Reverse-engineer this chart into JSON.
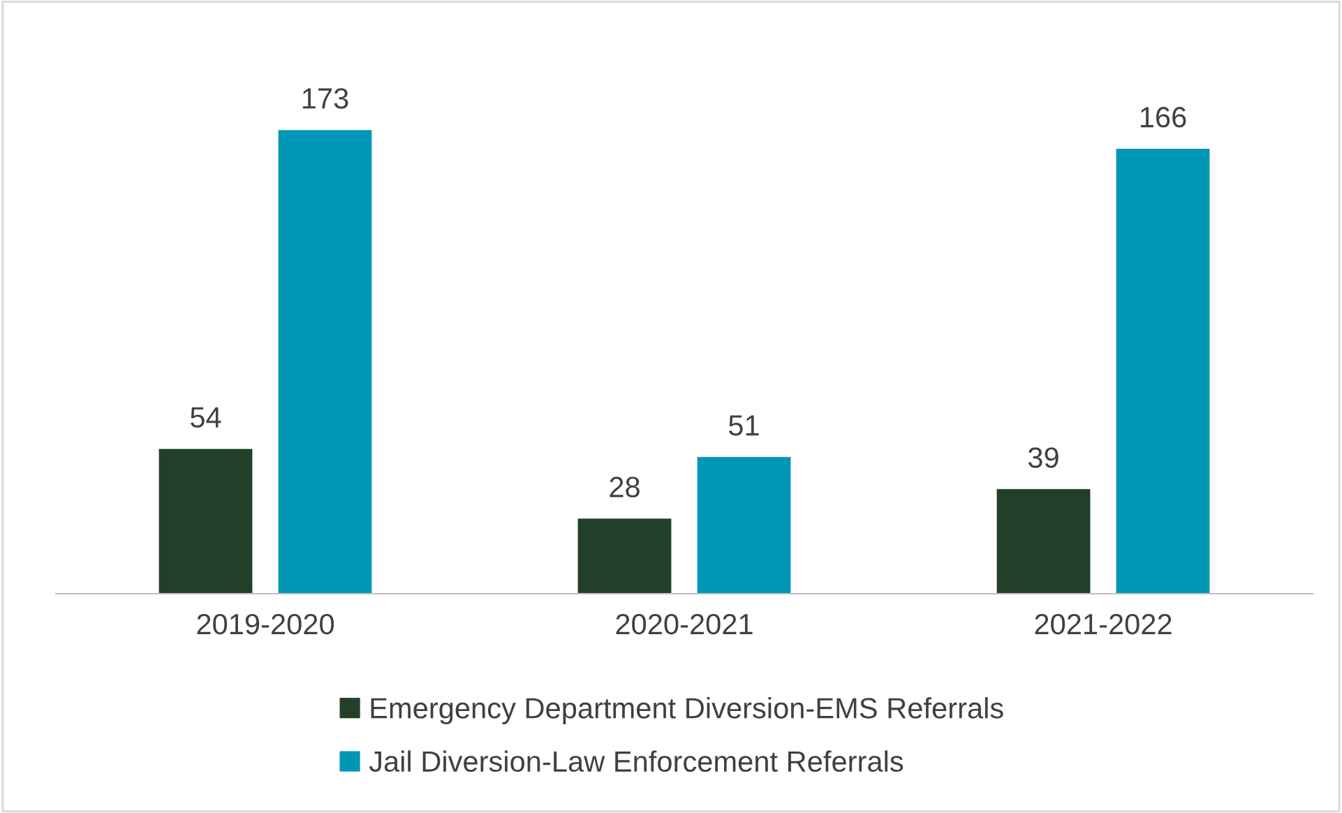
{
  "chart_data": {
    "type": "bar",
    "categories": [
      "2019-2020",
      "2020-2021",
      "2021-2022"
    ],
    "series": [
      {
        "name": "Emergency Department Diversion-EMS Referrals",
        "color": "#223f29",
        "values": [
          54,
          28,
          39
        ]
      },
      {
        "name": "Jail Diversion-Law Enforcement Referrals",
        "color": "#0097b7",
        "values": [
          173,
          51,
          166
        ]
      }
    ],
    "data_labels": true,
    "legend": "bottom"
  }
}
